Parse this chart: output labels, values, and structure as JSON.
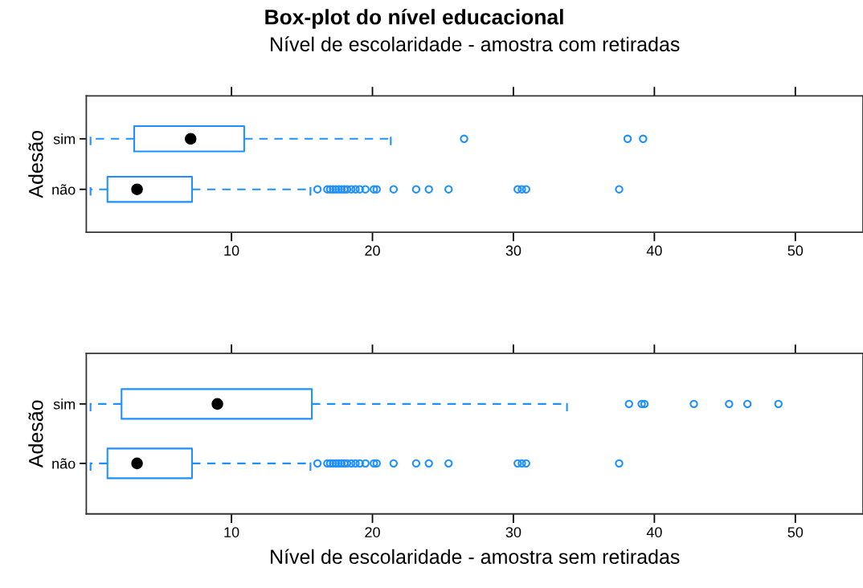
{
  "chart_data": [
    {
      "type": "box",
      "orientation": "horizontal",
      "title": "Box-plot do nível educacional",
      "subtitle": "Nível de escolaridade - amostra com retiradas",
      "ylabel": "Adesão",
      "categories": [
        "sim",
        "não"
      ],
      "xlim": [
        -0.3,
        54.8
      ],
      "xticks": [
        10,
        20,
        30,
        40,
        50
      ],
      "series": [
        {
          "color": "#1e90ff",
          "boxes": [
            {
              "low": 0,
              "q1": 3.1,
              "median": 7.1,
              "q3": 10.9,
              "high": 21.3,
              "outliers": [
                26.5,
                38.1,
                39.2
              ]
            },
            {
              "low": 0,
              "q1": 1.2,
              "median": 3.3,
              "q3": 7.2,
              "high": 15.6,
              "outliers": [
                16.1,
                16.8,
                17.0,
                17.2,
                17.4,
                17.6,
                17.8,
                18.0,
                18.2,
                18.5,
                18.8,
                19.1,
                19.5,
                20.1,
                20.3,
                21.5,
                23.1,
                24.0,
                25.4,
                30.3,
                30.6,
                30.9,
                37.5
              ]
            }
          ]
        }
      ]
    },
    {
      "type": "box",
      "orientation": "horizontal",
      "xlabel": "Nível de escolaridade - amostra sem retiradas",
      "ylabel": "Adesão",
      "categories": [
        "sim",
        "não"
      ],
      "xlim": [
        -0.3,
        54.8
      ],
      "xticks": [
        10,
        20,
        30,
        40,
        50
      ],
      "series": [
        {
          "color": "#1e90ff",
          "boxes": [
            {
              "low": 0,
              "q1": 2.2,
              "median": 9.0,
              "q3": 15.7,
              "high": 33.8,
              "outliers": [
                38.2,
                39.1,
                39.3,
                42.8,
                45.3,
                46.6,
                48.8
              ]
            },
            {
              "low": 0,
              "q1": 1.2,
              "median": 3.3,
              "q3": 7.2,
              "high": 15.6,
              "outliers": [
                16.1,
                16.8,
                17.0,
                17.2,
                17.4,
                17.6,
                17.8,
                18.0,
                18.2,
                18.5,
                18.8,
                19.1,
                19.5,
                20.1,
                20.3,
                21.5,
                23.1,
                24.0,
                25.4,
                30.3,
                30.6,
                30.9,
                37.5
              ]
            }
          ]
        }
      ]
    }
  ]
}
